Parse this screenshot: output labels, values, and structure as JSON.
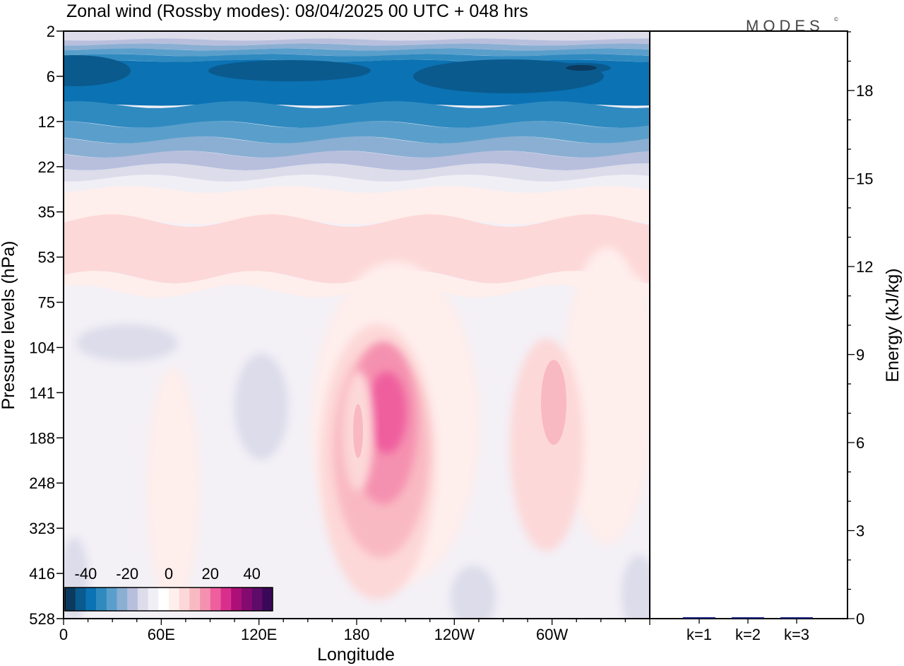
{
  "title": "Zonal wind (Rossby modes):  08/04/2025  00 UTC  + 048 hrs",
  "logo_text": "MODES",
  "logo_mark": "©",
  "chart_data": [
    {
      "type": "heatmap",
      "title": "Zonal wind (Rossby modes):  08/04/2025  00 UTC  + 048 hrs",
      "xlabel": "Longitude",
      "ylabel": "Pressure levels (hPa)",
      "x_ticks": [
        "0",
        "60E",
        "120E",
        "180",
        "120W",
        "60W"
      ],
      "x_tick_degrees": [
        0,
        60,
        120,
        180,
        240,
        300
      ],
      "xlim": [
        0,
        360
      ],
      "y_ticks": [
        "2",
        "6",
        "12",
        "22",
        "35",
        "53",
        "75",
        "104",
        "141",
        "188",
        "248",
        "323",
        "416",
        "528"
      ],
      "y_tick_levels": [
        2,
        6,
        12,
        22,
        35,
        53,
        75,
        104,
        141,
        188,
        248,
        323,
        416,
        528
      ],
      "y_axis": "pressure levels, equally spaced, 2 hPa at top",
      "colorbar": {
        "labels": [
          "-40",
          "-20",
          "0",
          "20",
          "40"
        ],
        "label_values": [
          -40,
          -20,
          0,
          20,
          40
        ],
        "range": [
          -50,
          50
        ],
        "step": 5,
        "colors": [
          "#0b3a5e",
          "#0a5a8e",
          "#0b72b3",
          "#2f8ac0",
          "#5a9fcb",
          "#8aafd3",
          "#b7bfdd",
          "#dcdcea",
          "#f1eff6",
          "#ffffff",
          "#feeeec",
          "#fdd8d8",
          "#f9b9c2",
          "#f591b0",
          "#ef5f9e",
          "#d92f8c",
          "#ad0f78",
          "#840a70",
          "#5e0b6a",
          "#3a0858"
        ]
      },
      "features": [
        {
          "kind": "easterly-band",
          "level_range": [
            2,
            18
          ],
          "min_value": -40
        },
        {
          "kind": "westerly-band",
          "level_range": [
            35,
            60
          ],
          "value": 10
        },
        {
          "kind": "westerly-jet",
          "center_lon": 205,
          "center_level": 160,
          "max_value": 25
        },
        {
          "kind": "westerly-jet",
          "center_lon": 275,
          "center_level": 150,
          "max_value": 15
        },
        {
          "kind": "westerly-jet",
          "center_lon": 180,
          "center_level": 180,
          "max_value": 15
        }
      ]
    },
    {
      "type": "bar",
      "ylabel": "Energy (kJ/kg)",
      "categories": [
        "k=1",
        "k=2",
        "k=3"
      ],
      "values": [
        0.05,
        0.02,
        0.03
      ],
      "ylim": [
        0,
        20
      ],
      "y_ticks": [
        0,
        3,
        6,
        9,
        12,
        15,
        18
      ],
      "bar_color": "#1a237e"
    }
  ]
}
